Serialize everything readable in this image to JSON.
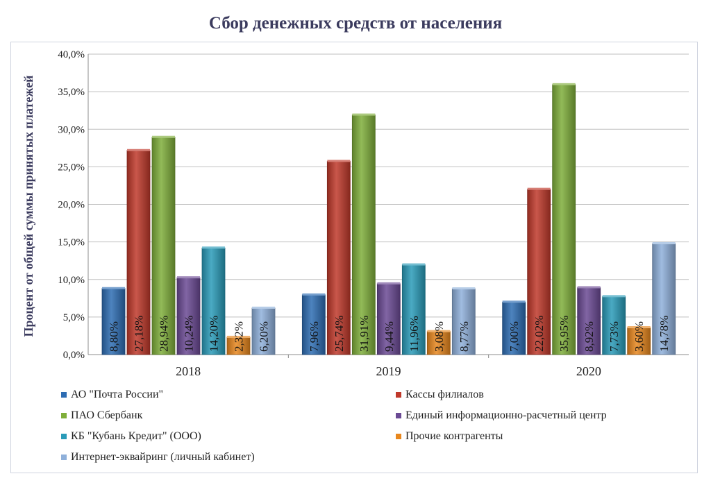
{
  "chart_data": {
    "type": "bar",
    "title": "Сбор денежных средств от населения",
    "ylabel": "Процент от общей суммы принятых платежей",
    "xlabel": "",
    "categories": [
      "2018",
      "2019",
      "2020"
    ],
    "ylim": [
      0,
      40
    ],
    "yticks": [
      "0,0%",
      "5,0%",
      "10,0%",
      "15,0%",
      "20,0%",
      "25,0%",
      "30,0%",
      "35,0%",
      "40,0%"
    ],
    "grid": true,
    "legend_position": "bottom",
    "series": [
      {
        "name": "АО \"Почта России\"",
        "color": "#2e6db3",
        "values": [
          8.8,
          7.96,
          7.0
        ],
        "labels": [
          "8,80%",
          "7,96%",
          "7,00%"
        ]
      },
      {
        "name": "Кассы филиалов",
        "color": "#c0392b",
        "values": [
          27.18,
          25.74,
          22.02
        ],
        "labels": [
          "27,18%",
          "25,74%",
          "22,02%"
        ]
      },
      {
        "name": "ПАО Сбербанк",
        "color": "#7fae3a",
        "values": [
          28.94,
          31.91,
          35.95
        ],
        "labels": [
          "28,94%",
          "31,91%",
          "35,95%"
        ]
      },
      {
        "name": "Единый информационно-расчетный центр",
        "color": "#6b4a94",
        "values": [
          10.24,
          9.44,
          8.92
        ],
        "labels": [
          "10,24%",
          "9,44%",
          "8,92%"
        ]
      },
      {
        "name": "КБ \"Кубань Кредит\" (ООО)",
        "color": "#2a9bb8",
        "values": [
          14.2,
          11.96,
          7.73
        ],
        "labels": [
          "14,20%",
          "11,96%",
          "7,73%"
        ]
      },
      {
        "name": "Прочие контрагенты",
        "color": "#e8871e",
        "values": [
          2.32,
          3.08,
          3.6
        ],
        "labels": [
          "2,32%",
          "3,08%",
          "3,60%"
        ]
      },
      {
        "name": "Интернет-эквайринг (личный кабинет)",
        "color": "#8fb0da",
        "values": [
          6.2,
          8.77,
          14.78
        ],
        "labels": [
          "6,20%",
          "8,77%",
          "14,78%"
        ]
      }
    ]
  }
}
